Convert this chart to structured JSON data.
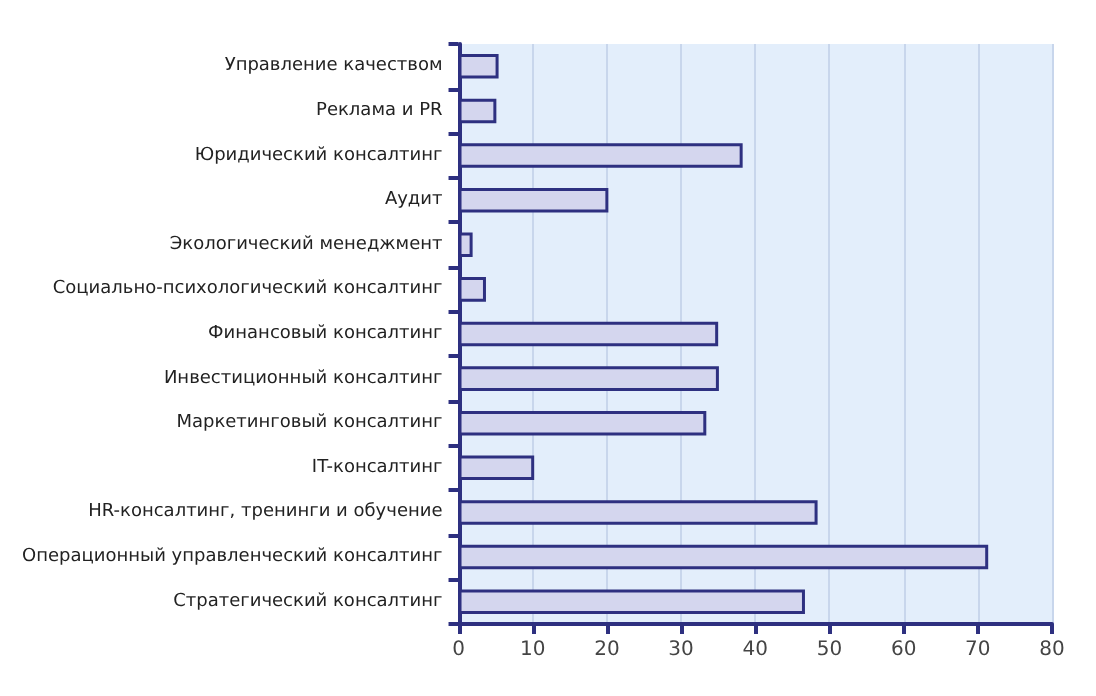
{
  "chart_data": {
    "type": "bar",
    "orientation": "horizontal",
    "categories": [
      "Управление качеством",
      "Реклама и PR",
      "Юридический консалтинг",
      "Аудит",
      "Экологический менеджмент",
      "Социально-психологический консалтинг",
      "Финансовый консалтинг",
      "Инвестиционный консалтинг",
      "Маркетинговый консалтинг",
      "IT-консалтинг",
      "HR-консалтинг, тренинги и обучение",
      "Операционный управленческий консалтинг",
      "Стратегический консалтинг"
    ],
    "values": [
      5.4,
      5.1,
      38.3,
      20.2,
      1.9,
      3.7,
      35.0,
      35.1,
      33.4,
      10.2,
      48.4,
      71.4,
      46.7
    ],
    "color": "#d4d6ee",
    "xlim": [
      0,
      80
    ],
    "xticks": [
      0,
      10,
      20,
      30,
      40,
      50,
      60,
      70,
      80
    ],
    "grid": "x"
  }
}
